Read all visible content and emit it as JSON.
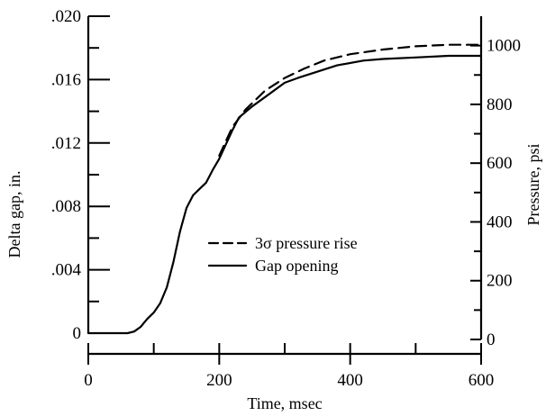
{
  "chart_data": {
    "type": "line",
    "xlabel": "Time, msec",
    "ylabel_left": "Delta gap, in.",
    "ylabel_right": "Pressure, psi",
    "xlim": [
      0,
      600
    ],
    "ylim_left": [
      0,
      0.02
    ],
    "ylim_right": [
      0,
      1100
    ],
    "x_ticks": [
      {
        "value": 0,
        "label": "0"
      },
      {
        "value": 200,
        "label": "200"
      },
      {
        "value": 400,
        "label": "400"
      },
      {
        "value": 600,
        "label": "600"
      }
    ],
    "x_minor_ticks": [
      100,
      300,
      500
    ],
    "y_left_ticks": [
      {
        "value": 0,
        "label": "0"
      },
      {
        "value": 0.004,
        "label": ".004"
      },
      {
        "value": 0.008,
        "label": ".008"
      },
      {
        "value": 0.012,
        "label": ".012"
      },
      {
        "value": 0.016,
        "label": ".016"
      },
      {
        "value": 0.02,
        "label": ".020"
      }
    ],
    "y_left_minor_ticks": [
      0.002,
      0.006,
      0.01,
      0.014,
      0.018
    ],
    "y_right_ticks": [
      {
        "value": 0,
        "label": "0"
      },
      {
        "value": 200,
        "label": "200"
      },
      {
        "value": 400,
        "label": "400"
      },
      {
        "value": 600,
        "label": "600"
      },
      {
        "value": 800,
        "label": "800"
      },
      {
        "value": 1000,
        "label": "1000"
      }
    ],
    "y_right_minor_ticks": [
      100,
      300,
      500,
      700,
      900
    ],
    "legend": {
      "placement": "center-right",
      "entries": [
        {
          "label": "3σ pressure rise",
          "style": "dashed"
        },
        {
          "label": "Gap opening",
          "style": "solid"
        }
      ]
    },
    "series": [
      {
        "name": "Gap opening",
        "axis": "left",
        "style": "solid",
        "x": [
          0,
          60,
          70,
          80,
          90,
          100,
          110,
          120,
          130,
          140,
          150,
          160,
          170,
          180,
          190,
          200,
          210,
          220,
          230,
          250,
          270,
          300,
          320,
          350,
          380,
          420,
          450,
          500,
          550,
          600
        ],
        "y": [
          0,
          0,
          0.0001,
          0.0004,
          0.0009,
          0.0013,
          0.0019,
          0.0029,
          0.0045,
          0.0064,
          0.0079,
          0.0087,
          0.0091,
          0.0095,
          0.0103,
          0.011,
          0.0119,
          0.0128,
          0.0136,
          0.0143,
          0.0149,
          0.0158,
          0.0161,
          0.0165,
          0.0169,
          0.0172,
          0.0173,
          0.0174,
          0.0175,
          0.0175
        ]
      },
      {
        "name": "3σ pressure rise",
        "axis": "left",
        "style": "dashed",
        "x": [
          200,
          220,
          240,
          270,
          300,
          330,
          360,
          400,
          450,
          500,
          550,
          600
        ],
        "y": [
          0.0112,
          0.013,
          0.0141,
          0.0153,
          0.0161,
          0.0167,
          0.0172,
          0.0176,
          0.0179,
          0.0181,
          0.0182,
          0.0182
        ]
      }
    ]
  }
}
